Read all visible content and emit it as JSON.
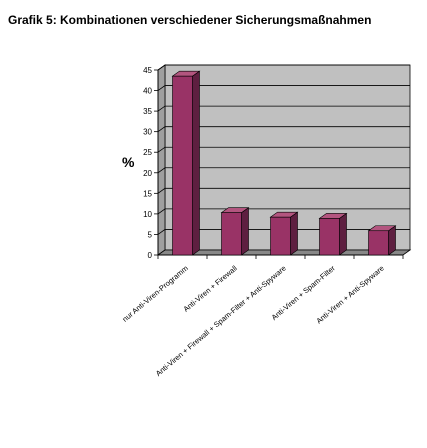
{
  "chart_data": {
    "type": "bar",
    "title": "Grafik 5: Kombinationen verschiedener Sicherungsmaßnahmen",
    "ylabel": "%",
    "xlabel": "",
    "ylim": [
      0,
      45
    ],
    "yticks": [
      0,
      5,
      10,
      15,
      20,
      25,
      30,
      35,
      40,
      45
    ],
    "grid": true,
    "style": "3d",
    "categories": [
      "nur Anti-Viren-Programm",
      "Anti-Viren + Firewall",
      "Anti-Viren + Firewall + Spam-Filter + Anti-Spyware",
      "Anti-Viren + Spam-Filter",
      "Anti-Viren + Anti-Spyware"
    ],
    "values": [
      43.5,
      10.3,
      9.2,
      8.9,
      5.9
    ],
    "colors": {
      "bar_front": "#993366",
      "bar_top": "#b3557f",
      "bar_side": "#5e1f40",
      "plot_background": "#c0c0c0",
      "back_wall": "#c0c0c0",
      "side_wall": "#9f9f9f",
      "floor": "#888888",
      "gridline": "#000000"
    }
  }
}
